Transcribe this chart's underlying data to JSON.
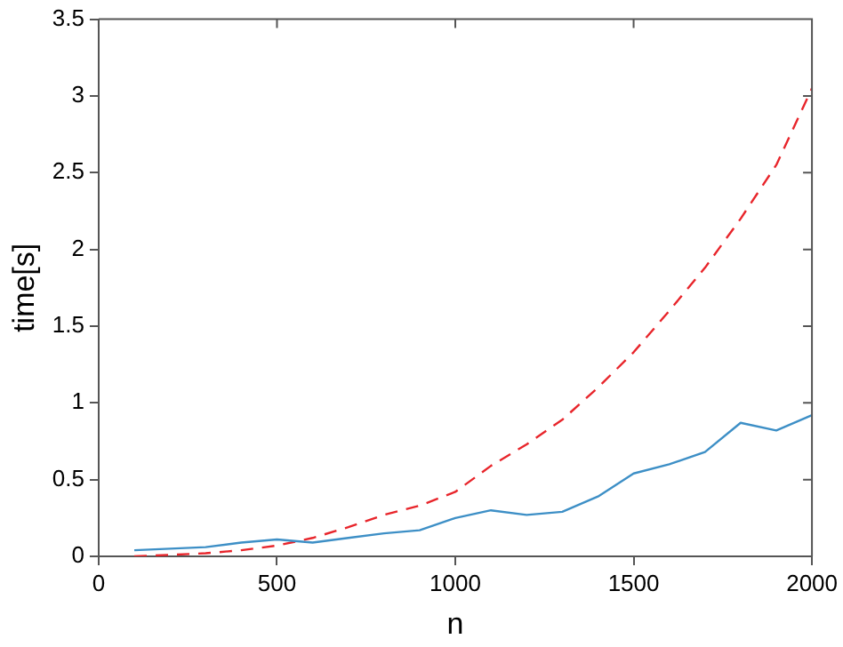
{
  "chart_data": {
    "type": "line",
    "xlabel": "n",
    "ylabel": "time[s]",
    "x": [
      100,
      200,
      300,
      400,
      500,
      600,
      700,
      800,
      900,
      1000,
      1100,
      1200,
      1300,
      1400,
      1500,
      1600,
      1700,
      1800,
      1900,
      2000
    ],
    "series": [
      {
        "color": "#3d8fc6",
        "line_style": "solid",
        "values": [
          0.04,
          0.05,
          0.06,
          0.09,
          0.11,
          0.09,
          0.12,
          0.15,
          0.17,
          0.25,
          0.3,
          0.27,
          0.29,
          0.39,
          0.54,
          0.6,
          0.68,
          0.87,
          0.82,
          0.92
        ]
      },
      {
        "color": "#e8252b",
        "line_style": "dashed",
        "values": [
          0.0,
          0.01,
          0.02,
          0.04,
          0.07,
          0.12,
          0.19,
          0.27,
          0.33,
          0.42,
          0.59,
          0.73,
          0.89,
          1.1,
          1.33,
          1.6,
          1.88,
          2.2,
          2.55,
          3.05
        ]
      }
    ],
    "xlim": [
      0,
      2000
    ],
    "xticks": [
      0,
      500,
      1000,
      1500,
      2000
    ],
    "ylim": [
      0,
      3.5
    ],
    "yticks": [
      0,
      0.5,
      1,
      1.5,
      2,
      2.5,
      3,
      3.5
    ],
    "grid": false,
    "legend": false,
    "marker": "none"
  }
}
